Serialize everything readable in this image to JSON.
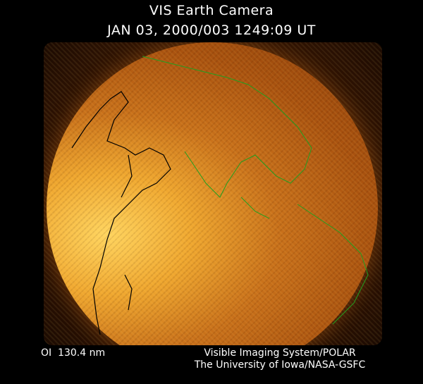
{
  "header": {
    "title": "VIS Earth Camera",
    "timestamp": "JAN 03, 2000/003 1249:09 UT"
  },
  "image": {
    "description_icon": "earth-far-ultraviolet-image",
    "coastline_colors": {
      "day_side": "#000000",
      "night_side": "#20a020"
    }
  },
  "footer": {
    "wavelength": "OI  130.4 nm",
    "instrument": "Visible Imaging System/POLAR",
    "institution": "The University of Iowa/NASA-GSFC"
  }
}
